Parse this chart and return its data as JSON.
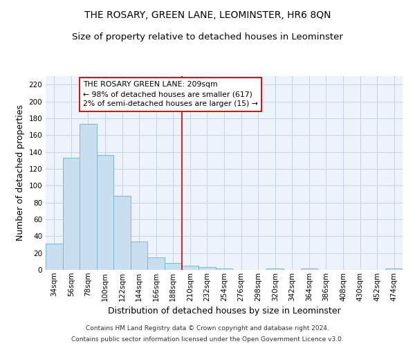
{
  "title": "THE ROSARY, GREEN LANE, LEOMINSTER, HR6 8QN",
  "subtitle": "Size of property relative to detached houses in Leominster",
  "xlabel": "Distribution of detached houses by size in Leominster",
  "ylabel": "Number of detached properties",
  "footnote1": "Contains HM Land Registry data © Crown copyright and database right 2024.",
  "footnote2": "Contains public sector information licensed under the Open Government Licence v3.0.",
  "categories": [
    "34sqm",
    "56sqm",
    "78sqm",
    "100sqm",
    "122sqm",
    "144sqm",
    "166sqm",
    "188sqm",
    "210sqm",
    "232sqm",
    "254sqm",
    "276sqm",
    "298sqm",
    "320sqm",
    "342sqm",
    "364sqm",
    "386sqm",
    "408sqm",
    "430sqm",
    "452sqm",
    "474sqm"
  ],
  "values": [
    31,
    133,
    173,
    136,
    88,
    34,
    15,
    8,
    5,
    3,
    2,
    0,
    0,
    2,
    0,
    2,
    0,
    0,
    0,
    0,
    2
  ],
  "bar_color": "#c9dff0",
  "bar_edge_color": "#7ab5d8",
  "highlight_line_index": 8,
  "highlight_line_color": "#cc0000",
  "annotation_line1": "THE ROSARY GREEN LANE: 209sqm",
  "annotation_line2": "← 98% of detached houses are smaller (617)",
  "annotation_line3": "2% of semi-detached houses are larger (15) →",
  "annotation_box_color": "#cc0000",
  "ylim": [
    0,
    230
  ],
  "yticks": [
    0,
    20,
    40,
    60,
    80,
    100,
    120,
    140,
    160,
    180,
    200,
    220
  ],
  "background_color": "#eef2fa",
  "grid_color": "#c8d4e8",
  "title_fontsize": 10,
  "subtitle_fontsize": 9.5,
  "axis_label_fontsize": 9,
  "tick_fontsize": 7.5,
  "footnote_fontsize": 6.5
}
